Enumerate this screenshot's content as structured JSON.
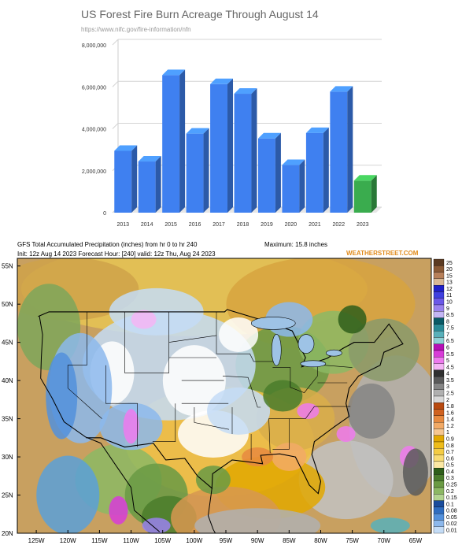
{
  "chart_data": [
    {
      "type": "bar",
      "title": "US Forest Fire Burn Acreage Through August 14",
      "subtitle": "https://www.nifc.gov/fire-information/nfn",
      "categories": [
        "2013",
        "2014",
        "2015",
        "2016",
        "2017",
        "2018",
        "2019",
        "2020",
        "2021",
        "2022",
        "2023"
      ],
      "values": [
        2950000,
        2440000,
        6560000,
        3770000,
        6130000,
        5670000,
        3540000,
        2270000,
        3800000,
        5770000,
        1530000
      ],
      "yticks": [
        "0",
        "2,000,000",
        "4,000,000",
        "6,000,000",
        "8,000,000"
      ],
      "ylim": [
        0,
        8000000
      ],
      "grid": true,
      "colors": {
        "default": "#3f80f0",
        "highlight": "#3aac4e"
      }
    },
    {
      "type": "heatmap",
      "header_line1": "GFS Total Accumulated Precipitation (inches) from hr 0 to hr 240",
      "maximum": "Maximum: 15.8 inches",
      "header_line2": "Init: 12z Aug 14 2023   Forecast Hour: [240]   valid: 12z Thu, Aug 24 2023",
      "brand": "WEATHERSTREET.COM",
      "lat_labels": [
        "55N",
        "50N",
        "45N",
        "40N",
        "35N",
        "30N",
        "25N",
        "20N"
      ],
      "lon_labels": [
        "125W",
        "120W",
        "115W",
        "110W",
        "105W",
        "100W",
        "95W",
        "90W",
        "85W",
        "80W",
        "75W",
        "70W",
        "65W"
      ],
      "legend": [
        {
          "label": "25",
          "color": "#5a3a22"
        },
        {
          "label": "20",
          "color": "#8a5a36"
        },
        {
          "label": "15",
          "color": "#b7805a"
        },
        {
          "label": "13",
          "color": "#d9b896"
        },
        {
          "label": "12",
          "color": "#2020c8"
        },
        {
          "label": "11",
          "color": "#4040e0"
        },
        {
          "label": "10",
          "color": "#6b58e8"
        },
        {
          "label": "9",
          "color": "#9a82ee"
        },
        {
          "label": "8.5",
          "color": "#c4b6f5"
        },
        {
          "label": "8",
          "color": "#0a5a66"
        },
        {
          "label": "7.5",
          "color": "#2a8a96"
        },
        {
          "label": "7",
          "color": "#58b0ba"
        },
        {
          "label": "6.5",
          "color": "#8ed0d6"
        },
        {
          "label": "6",
          "color": "#b50fb5"
        },
        {
          "label": "5.5",
          "color": "#d83cd8"
        },
        {
          "label": "5",
          "color": "#ee7aee"
        },
        {
          "label": "4.5",
          "color": "#f5b5f5"
        },
        {
          "label": "4",
          "color": "#303030"
        },
        {
          "label": "3.5",
          "color": "#5a5a5a"
        },
        {
          "label": "3",
          "color": "#858585"
        },
        {
          "label": "2.5",
          "color": "#b0b0b0"
        },
        {
          "label": "2",
          "color": "#d8d8d8"
        },
        {
          "label": "1.8",
          "color": "#b84a10"
        },
        {
          "label": "1.6",
          "color": "#d06220"
        },
        {
          "label": "1.4",
          "color": "#e88a40"
        },
        {
          "label": "1.2",
          "color": "#f2aa66"
        },
        {
          "label": "1",
          "color": "#f6c690"
        },
        {
          "label": "0.9",
          "color": "#e2a800"
        },
        {
          "label": "0.8",
          "color": "#eebc1a"
        },
        {
          "label": "0.7",
          "color": "#f4cc44"
        },
        {
          "label": "0.6",
          "color": "#f8dc74"
        },
        {
          "label": "0.5",
          "color": "#fce8a4"
        },
        {
          "label": "0.4",
          "color": "#2e5e1a"
        },
        {
          "label": "0.3",
          "color": "#4a7c2c"
        },
        {
          "label": "0.25",
          "color": "#6a9a44"
        },
        {
          "label": "0.2",
          "color": "#8cb864"
        },
        {
          "label": "0.15",
          "color": "#b2d490"
        },
        {
          "label": "0.1",
          "color": "#1a4c9c"
        },
        {
          "label": "0.08",
          "color": "#2e6cc0"
        },
        {
          "label": "0.05",
          "color": "#5290dc"
        },
        {
          "label": "0.02",
          "color": "#8cb8ec"
        },
        {
          "label": "0.01",
          "color": "#c4dcf6"
        }
      ]
    }
  ]
}
